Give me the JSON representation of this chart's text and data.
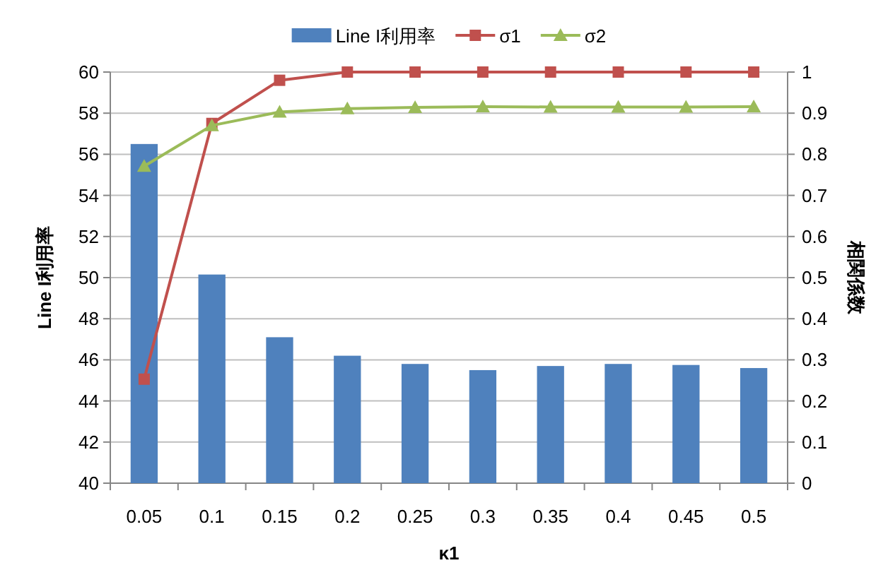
{
  "chart_data": {
    "type": "bar",
    "xlabel": "κ1",
    "ylabel": "Line I利用率",
    "y2label": "相関係数",
    "categories": [
      "0.05",
      "0.1",
      "0.15",
      "0.2",
      "0.25",
      "0.3",
      "0.35",
      "0.4",
      "0.45",
      "0.5"
    ],
    "series": [
      {
        "name": "Line I利用率",
        "color": "#4f81bd",
        "values": [
          56.5,
          50.15,
          47.1,
          46.2,
          45.8,
          45.5,
          45.7,
          45.8,
          45.75,
          45.6
        ]
      },
      {
        "name": "σ1",
        "type": "line",
        "axis": "y2",
        "color": "#c0504d",
        "marker": "square",
        "values": [
          0.253,
          0.875,
          0.98,
          1,
          1,
          1,
          1,
          1,
          1,
          1
        ]
      },
      {
        "name": "σ2",
        "type": "line",
        "axis": "y2",
        "color": "#9bbb59",
        "marker": "triangle",
        "values": [
          0.771,
          0.87,
          0.903,
          0.911,
          0.914,
          0.916,
          0.915,
          0.915,
          0.915,
          0.916
        ]
      }
    ],
    "ylim": [
      40,
      60
    ],
    "yticks": [
      40,
      42,
      44,
      46,
      48,
      50,
      52,
      54,
      56,
      58,
      60
    ],
    "y2lim": [
      0,
      1
    ],
    "y2ticks": [
      0,
      0.1,
      0.2,
      0.3,
      0.4,
      0.5,
      0.6,
      0.7,
      0.8,
      0.9,
      1
    ],
    "grid": "y",
    "legend": "top"
  }
}
